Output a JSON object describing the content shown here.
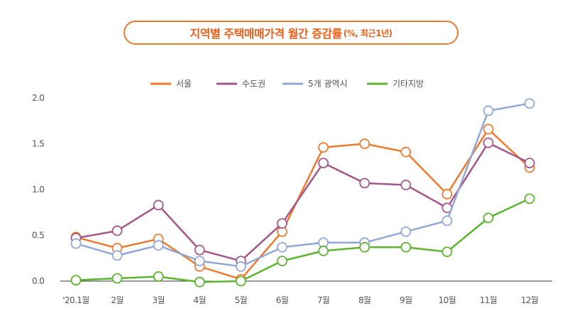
{
  "title": {
    "main": "지역별 주택매매가격 월간 증감률",
    "sub": "(%, 최근1년)"
  },
  "chart_data": {
    "type": "line",
    "title": "지역별 주택매매가격 월간 증감률 (%, 최근1년)",
    "xlabel": "",
    "ylabel": "",
    "categories": [
      "'20.1월",
      "2월",
      "3월",
      "4월",
      "5월",
      "6월",
      "7월",
      "8월",
      "9월",
      "10월",
      "11월",
      "12월"
    ],
    "y_ticks": [
      "0.0",
      "0.5",
      "1.0",
      "1.5",
      "2.0"
    ],
    "ylim": [
      0,
      2.0
    ],
    "grid": false,
    "legend_position": "top",
    "series": [
      {
        "name": "서울",
        "color": "#EE7A2E",
        "values": [
          0.48,
          0.36,
          0.46,
          0.16,
          0.02,
          0.54,
          1.46,
          1.5,
          1.41,
          0.95,
          1.66,
          1.24
        ]
      },
      {
        "name": "수도권",
        "color": "#A3578A",
        "values": [
          0.47,
          0.55,
          0.83,
          0.34,
          0.22,
          0.63,
          1.29,
          1.07,
          1.05,
          0.8,
          1.51,
          1.29
        ]
      },
      {
        "name": "5개 광역시",
        "color": "#91A8D6",
        "values": [
          0.41,
          0.28,
          0.39,
          0.22,
          0.16,
          0.37,
          0.42,
          0.42,
          0.54,
          0.66,
          1.86,
          1.94
        ]
      },
      {
        "name": "기타지방",
        "color": "#5DB42F",
        "values": [
          0.01,
          0.03,
          0.05,
          -0.01,
          0.0,
          0.22,
          0.33,
          0.37,
          0.37,
          0.32,
          0.69,
          0.9
        ]
      }
    ]
  }
}
